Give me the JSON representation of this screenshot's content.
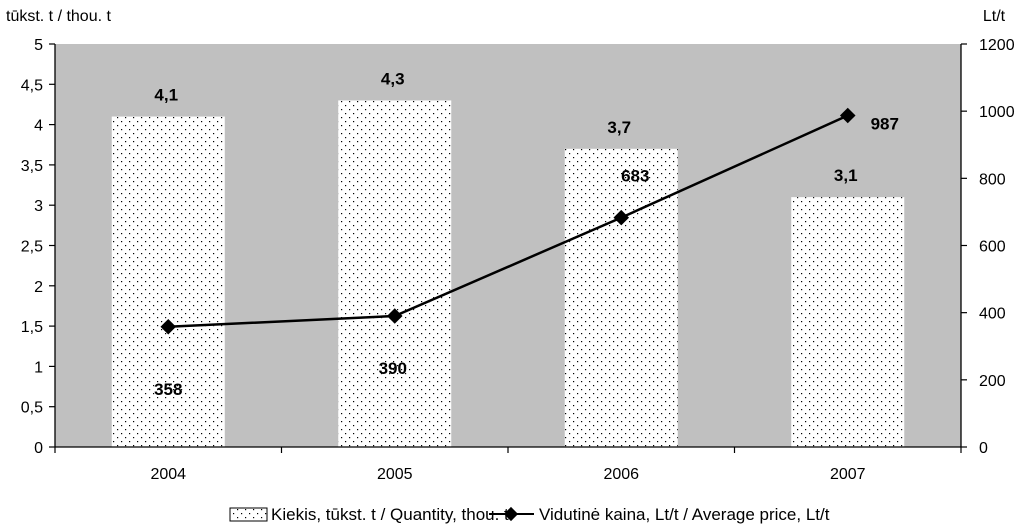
{
  "chart_data": {
    "type": "bar",
    "categories": [
      "2004",
      "2005",
      "2006",
      "2007"
    ],
    "series": [
      {
        "name": "Kiekis, tūkst. t / Quantity, thou. t",
        "type": "bar",
        "axis": "left",
        "values": [
          4.1,
          4.3,
          3.7,
          3.1
        ],
        "labels": [
          "4,1",
          "4,3",
          "3,7",
          "3,1"
        ]
      },
      {
        "name": "Vidutinė kaina, Lt/t / Average price, Lt/t",
        "type": "line",
        "axis": "right",
        "values": [
          358,
          390,
          683,
          987
        ],
        "labels": [
          "358",
          "390",
          "683",
          "987"
        ]
      }
    ],
    "y_left": {
      "title": "tūkst. t / thou. t",
      "ylim": [
        0,
        5
      ],
      "ticks": [
        0,
        0.5,
        1,
        1.5,
        2,
        2.5,
        3,
        3.5,
        4,
        4.5,
        5
      ],
      "tick_labels": [
        "0",
        "0,5",
        "1",
        "1,5",
        "2",
        "2,5",
        "3",
        "3,5",
        "4",
        "4,5",
        "5"
      ]
    },
    "y_right": {
      "title": "Lt/t",
      "ylim": [
        0,
        1200
      ],
      "ticks": [
        0,
        200,
        400,
        600,
        800,
        1000,
        1200
      ],
      "tick_labels": [
        "0",
        "200",
        "400",
        "600",
        "800",
        "1000",
        "1200"
      ]
    },
    "grid": false,
    "legend_position": "bottom",
    "colors": {
      "plot_background": "#c0c0c0",
      "bar_fill": "#ffffff",
      "bar_pattern_dots": "#000000",
      "line": "#000000",
      "marker": "#000000"
    }
  }
}
